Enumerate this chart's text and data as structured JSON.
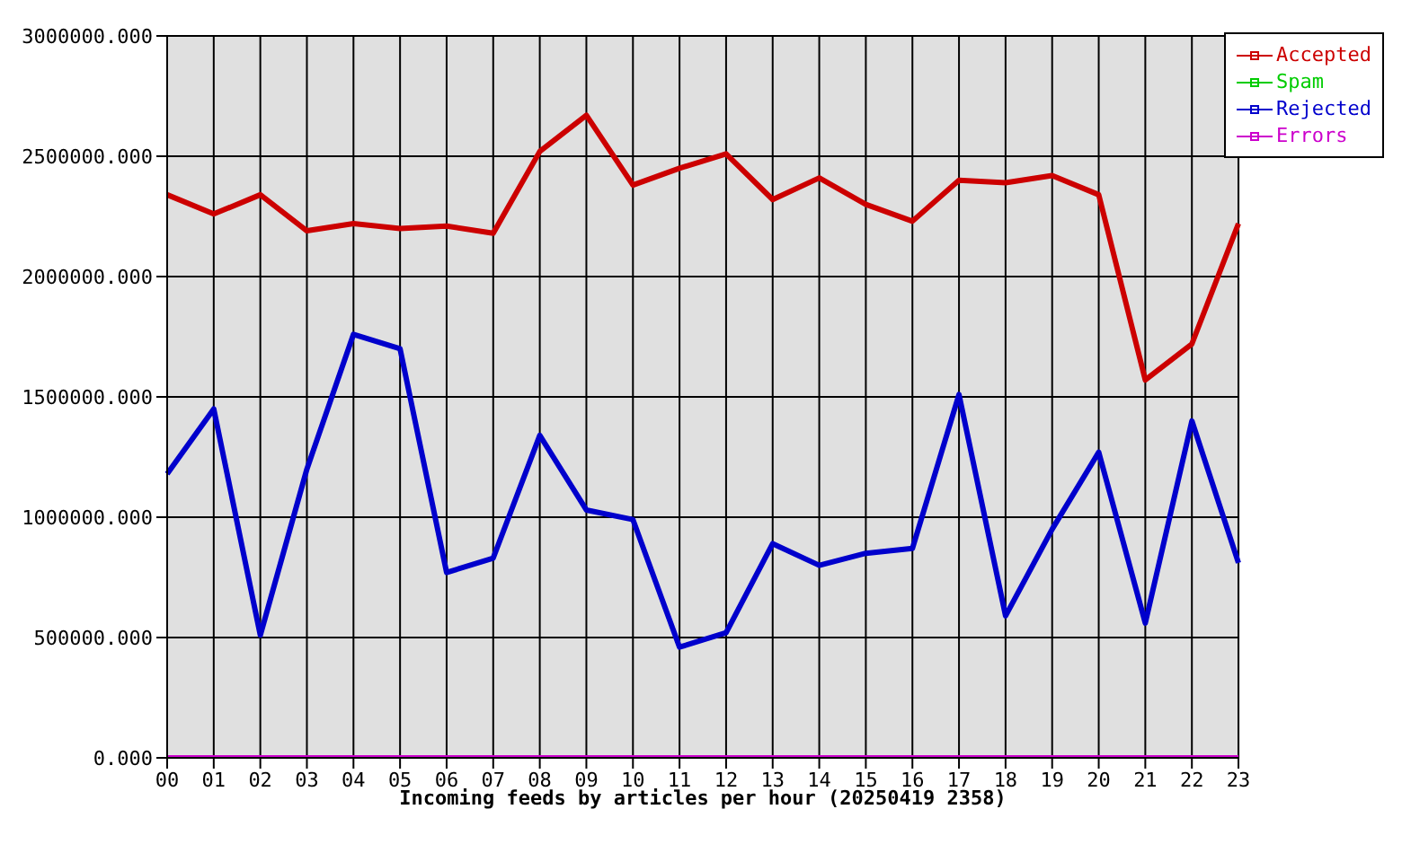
{
  "chart_data": {
    "type": "line",
    "xlabel": "Incoming feeds by articles per hour (20250419 2358)",
    "categories": [
      "00",
      "01",
      "02",
      "03",
      "04",
      "05",
      "06",
      "07",
      "08",
      "09",
      "10",
      "11",
      "12",
      "13",
      "14",
      "15",
      "16",
      "17",
      "18",
      "19",
      "20",
      "21",
      "22",
      "23"
    ],
    "series": [
      {
        "name": "Accepted",
        "color": "#cc0000",
        "values": [
          2340000,
          2260000,
          2340000,
          2190000,
          2220000,
          2200000,
          2210000,
          2180000,
          2520000,
          2670000,
          2380000,
          2450000,
          2510000,
          2320000,
          2410000,
          2300000,
          2230000,
          2400000,
          2390000,
          2420000,
          2340000,
          1570000,
          1720000,
          2220000
        ]
      },
      {
        "name": "Spam",
        "color": "#00cc00",
        "values": [
          null,
          null,
          null,
          null,
          null,
          null,
          null,
          null,
          null,
          null,
          null,
          null,
          null,
          null,
          null,
          null,
          null,
          null,
          null,
          null,
          null,
          null,
          null,
          null
        ]
      },
      {
        "name": "Rejected",
        "color": "#0000cc",
        "values": [
          1180000,
          1450000,
          510000,
          1200000,
          1760000,
          1700000,
          770000,
          830000,
          1340000,
          1030000,
          990000,
          460000,
          520000,
          890000,
          800000,
          850000,
          870000,
          1510000,
          590000,
          950000,
          1270000,
          560000,
          1400000,
          810000
        ]
      },
      {
        "name": "Errors",
        "color": "#cc00cc",
        "values": [
          0,
          0,
          0,
          0,
          0,
          0,
          0,
          0,
          0,
          0,
          0,
          0,
          0,
          0,
          0,
          0,
          0,
          0,
          0,
          0,
          0,
          0,
          0,
          0
        ]
      }
    ],
    "ylim": [
      0,
      3000000
    ],
    "yticks": [
      {
        "value": 0,
        "label": "0.000"
      },
      {
        "value": 500000,
        "label": "500000.000"
      },
      {
        "value": 1000000,
        "label": "1000000.000"
      },
      {
        "value": 1500000,
        "label": "1500000.000"
      },
      {
        "value": 2000000,
        "label": "2000000.000"
      },
      {
        "value": 2500000,
        "label": "2500000.000"
      },
      {
        "value": 3000000,
        "label": "3000000.000"
      }
    ],
    "grid": true,
    "legend": "top right",
    "marker": "none",
    "line_style": "solid"
  }
}
